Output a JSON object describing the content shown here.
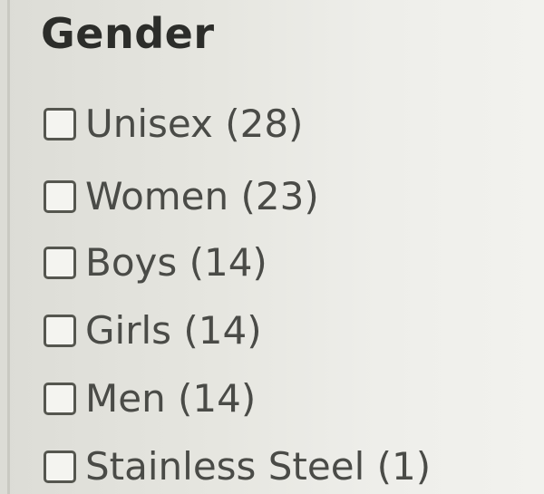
{
  "filter": {
    "title": "Gender",
    "options": [
      {
        "label": "Unisex (28)"
      },
      {
        "label": "Women (23)"
      },
      {
        "label": "Boys (14)"
      },
      {
        "label": "Girls (14)"
      },
      {
        "label": "Men (14)"
      },
      {
        "label": "Stainless Steel (1)"
      }
    ]
  }
}
